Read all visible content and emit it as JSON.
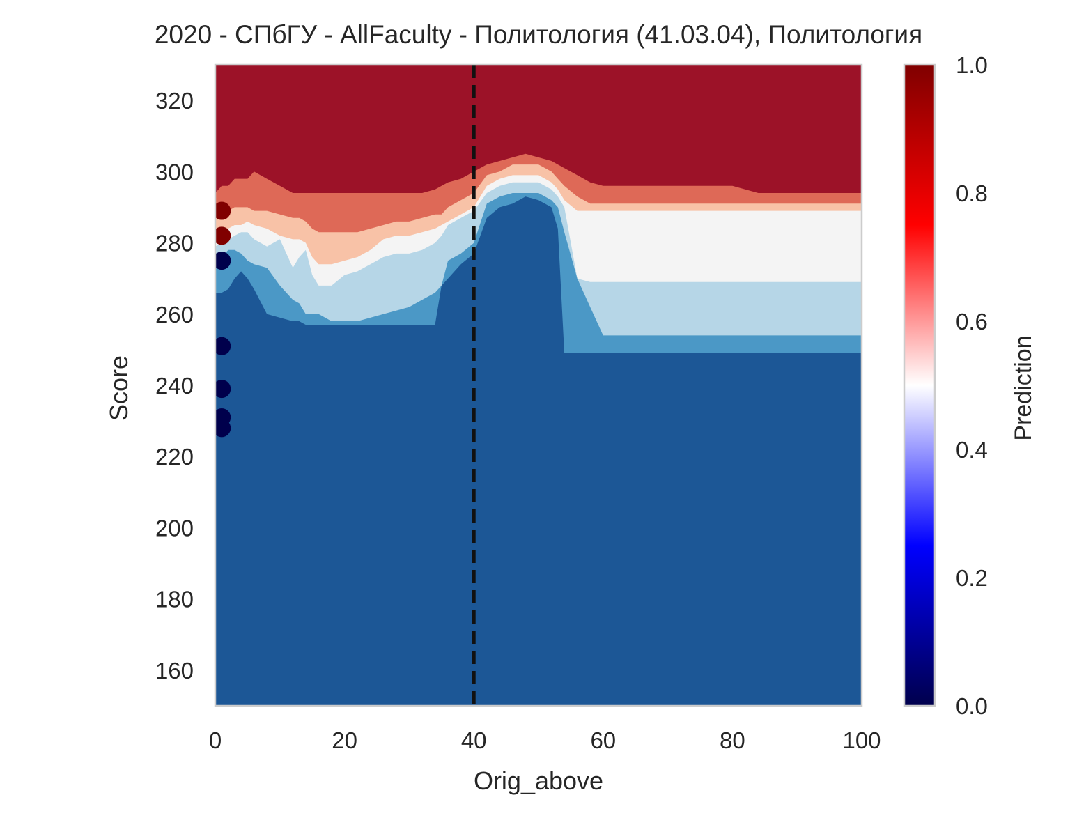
{
  "chart_data": {
    "type": "heatmap",
    "title": "2020 - СПбГУ - AllFaculty - Политология (41.03.04), Политология",
    "xlabel": "Orig_above",
    "ylabel": "Score",
    "xlim": [
      0,
      100
    ],
    "ylim": [
      150,
      330
    ],
    "x_ticks": [
      0,
      20,
      40,
      60,
      80,
      100
    ],
    "y_ticks": [
      160,
      180,
      200,
      220,
      240,
      260,
      280,
      300,
      320
    ],
    "grid": false,
    "colorbar": {
      "label": "Prediction",
      "range": [
        0,
        1
      ],
      "ticks": [
        "0.0",
        "0.2",
        "0.4",
        "0.6",
        "0.8",
        "1.0"
      ],
      "colormap": "seismic",
      "stops": [
        "#00004c",
        "#0000ff",
        "#ffffff",
        "#ff0000",
        "#800000"
      ]
    },
    "contour_levels": [
      {
        "range": [
          0.0,
          0.1
        ],
        "color": "#1c5796"
      },
      {
        "range": [
          0.1,
          0.3
        ],
        "color": "#4b98c6"
      },
      {
        "range": [
          0.3,
          0.5
        ],
        "color": "#b6d6e7"
      },
      {
        "range": [
          0.5,
          0.6
        ],
        "color": "#f4f4f4"
      },
      {
        "range": [
          0.6,
          0.7
        ],
        "color": "#f8c2a7"
      },
      {
        "range": [
          0.7,
          0.9
        ],
        "color": "#de6957"
      },
      {
        "range": [
          0.9,
          1.0
        ],
        "color": "#9c1228"
      }
    ],
    "boundaries_x": [
      0,
      1,
      2,
      3,
      4,
      5,
      6,
      8,
      10,
      12,
      13,
      14,
      15,
      16,
      18,
      20,
      22,
      24,
      26,
      28,
      30,
      32,
      34,
      35,
      36,
      38,
      40,
      42,
      44,
      46,
      48,
      50,
      52,
      53,
      54,
      56,
      58,
      60,
      70,
      80,
      82,
      84,
      86,
      90,
      100
    ],
    "boundaries": [
      {
        "level": 0.1,
        "y": [
          266,
          266,
          267,
          270,
          272,
          270,
          267,
          260,
          259,
          258,
          258,
          257,
          257,
          257,
          257,
          257,
          257,
          257,
          257,
          257,
          257,
          257,
          257,
          268,
          270,
          274,
          277,
          287,
          290,
          291,
          293,
          292,
          290,
          284,
          249,
          249,
          249,
          249,
          249,
          249,
          249,
          249,
          249,
          249,
          249
        ]
      },
      {
        "level": 0.3,
        "y": [
          273,
          276,
          278,
          278,
          277,
          275,
          274,
          273,
          268,
          264,
          263,
          260,
          260,
          260,
          258,
          258,
          258,
          259,
          260,
          261,
          262,
          264,
          266,
          268,
          275,
          277,
          280,
          291,
          293,
          294,
          294,
          294,
          292,
          290,
          283,
          270,
          262,
          254,
          254,
          254,
          254,
          254,
          254,
          254,
          254
        ]
      },
      {
        "level": 0.5,
        "y": [
          279,
          280,
          281,
          282,
          283,
          283,
          281,
          279,
          281,
          273,
          276,
          278,
          271,
          268,
          268,
          271,
          272,
          274,
          276,
          277,
          277,
          278,
          280,
          282,
          285,
          287,
          289,
          294,
          296,
          297,
          297,
          297,
          295,
          293,
          290,
          270,
          269,
          269,
          269,
          269,
          269,
          269,
          269,
          269,
          269
        ]
      },
      {
        "level": 0.6,
        "y": [
          282,
          283,
          284,
          285,
          285,
          286,
          285,
          284,
          282,
          281,
          281,
          280,
          276,
          274,
          274,
          275,
          276,
          278,
          281,
          282,
          282,
          283,
          284,
          285,
          286,
          288,
          290,
          296,
          298,
          299,
          299,
          299,
          297,
          295,
          292,
          289,
          289,
          289,
          289,
          289,
          289,
          289,
          289,
          289,
          289
        ]
      },
      {
        "level": 0.7,
        "y": [
          287,
          288,
          289,
          290,
          290,
          290,
          289,
          289,
          288,
          287,
          287,
          286,
          284,
          283,
          283,
          283,
          283,
          284,
          285,
          286,
          286,
          287,
          288,
          288,
          290,
          292,
          294,
          299,
          300,
          302,
          302,
          302,
          300,
          298,
          296,
          293,
          291,
          291,
          291,
          291,
          291,
          291,
          291,
          291,
          291
        ]
      },
      {
        "level": 0.9,
        "y": [
          294,
          296,
          296,
          298,
          298,
          298,
          300,
          298,
          296,
          294,
          294,
          294,
          294,
          294,
          294,
          294,
          294,
          294,
          294,
          294,
          294,
          294,
          295,
          296,
          297,
          298,
          300,
          302,
          303,
          304,
          305,
          304,
          303,
          302,
          301,
          299,
          297,
          296,
          296,
          296,
          295,
          294,
          294,
          294,
          294
        ]
      }
    ],
    "threshold_x": 40,
    "points": [
      {
        "x": 1,
        "y": 289,
        "value": 1.0
      },
      {
        "x": 1,
        "y": 282,
        "value": 1.0
      },
      {
        "x": 1,
        "y": 275,
        "value": 0.0
      },
      {
        "x": 1,
        "y": 251,
        "value": 0.0
      },
      {
        "x": 1,
        "y": 239,
        "value": 0.0
      },
      {
        "x": 1,
        "y": 231,
        "value": 0.0
      },
      {
        "x": 1,
        "y": 228,
        "value": 0.0
      }
    ]
  }
}
